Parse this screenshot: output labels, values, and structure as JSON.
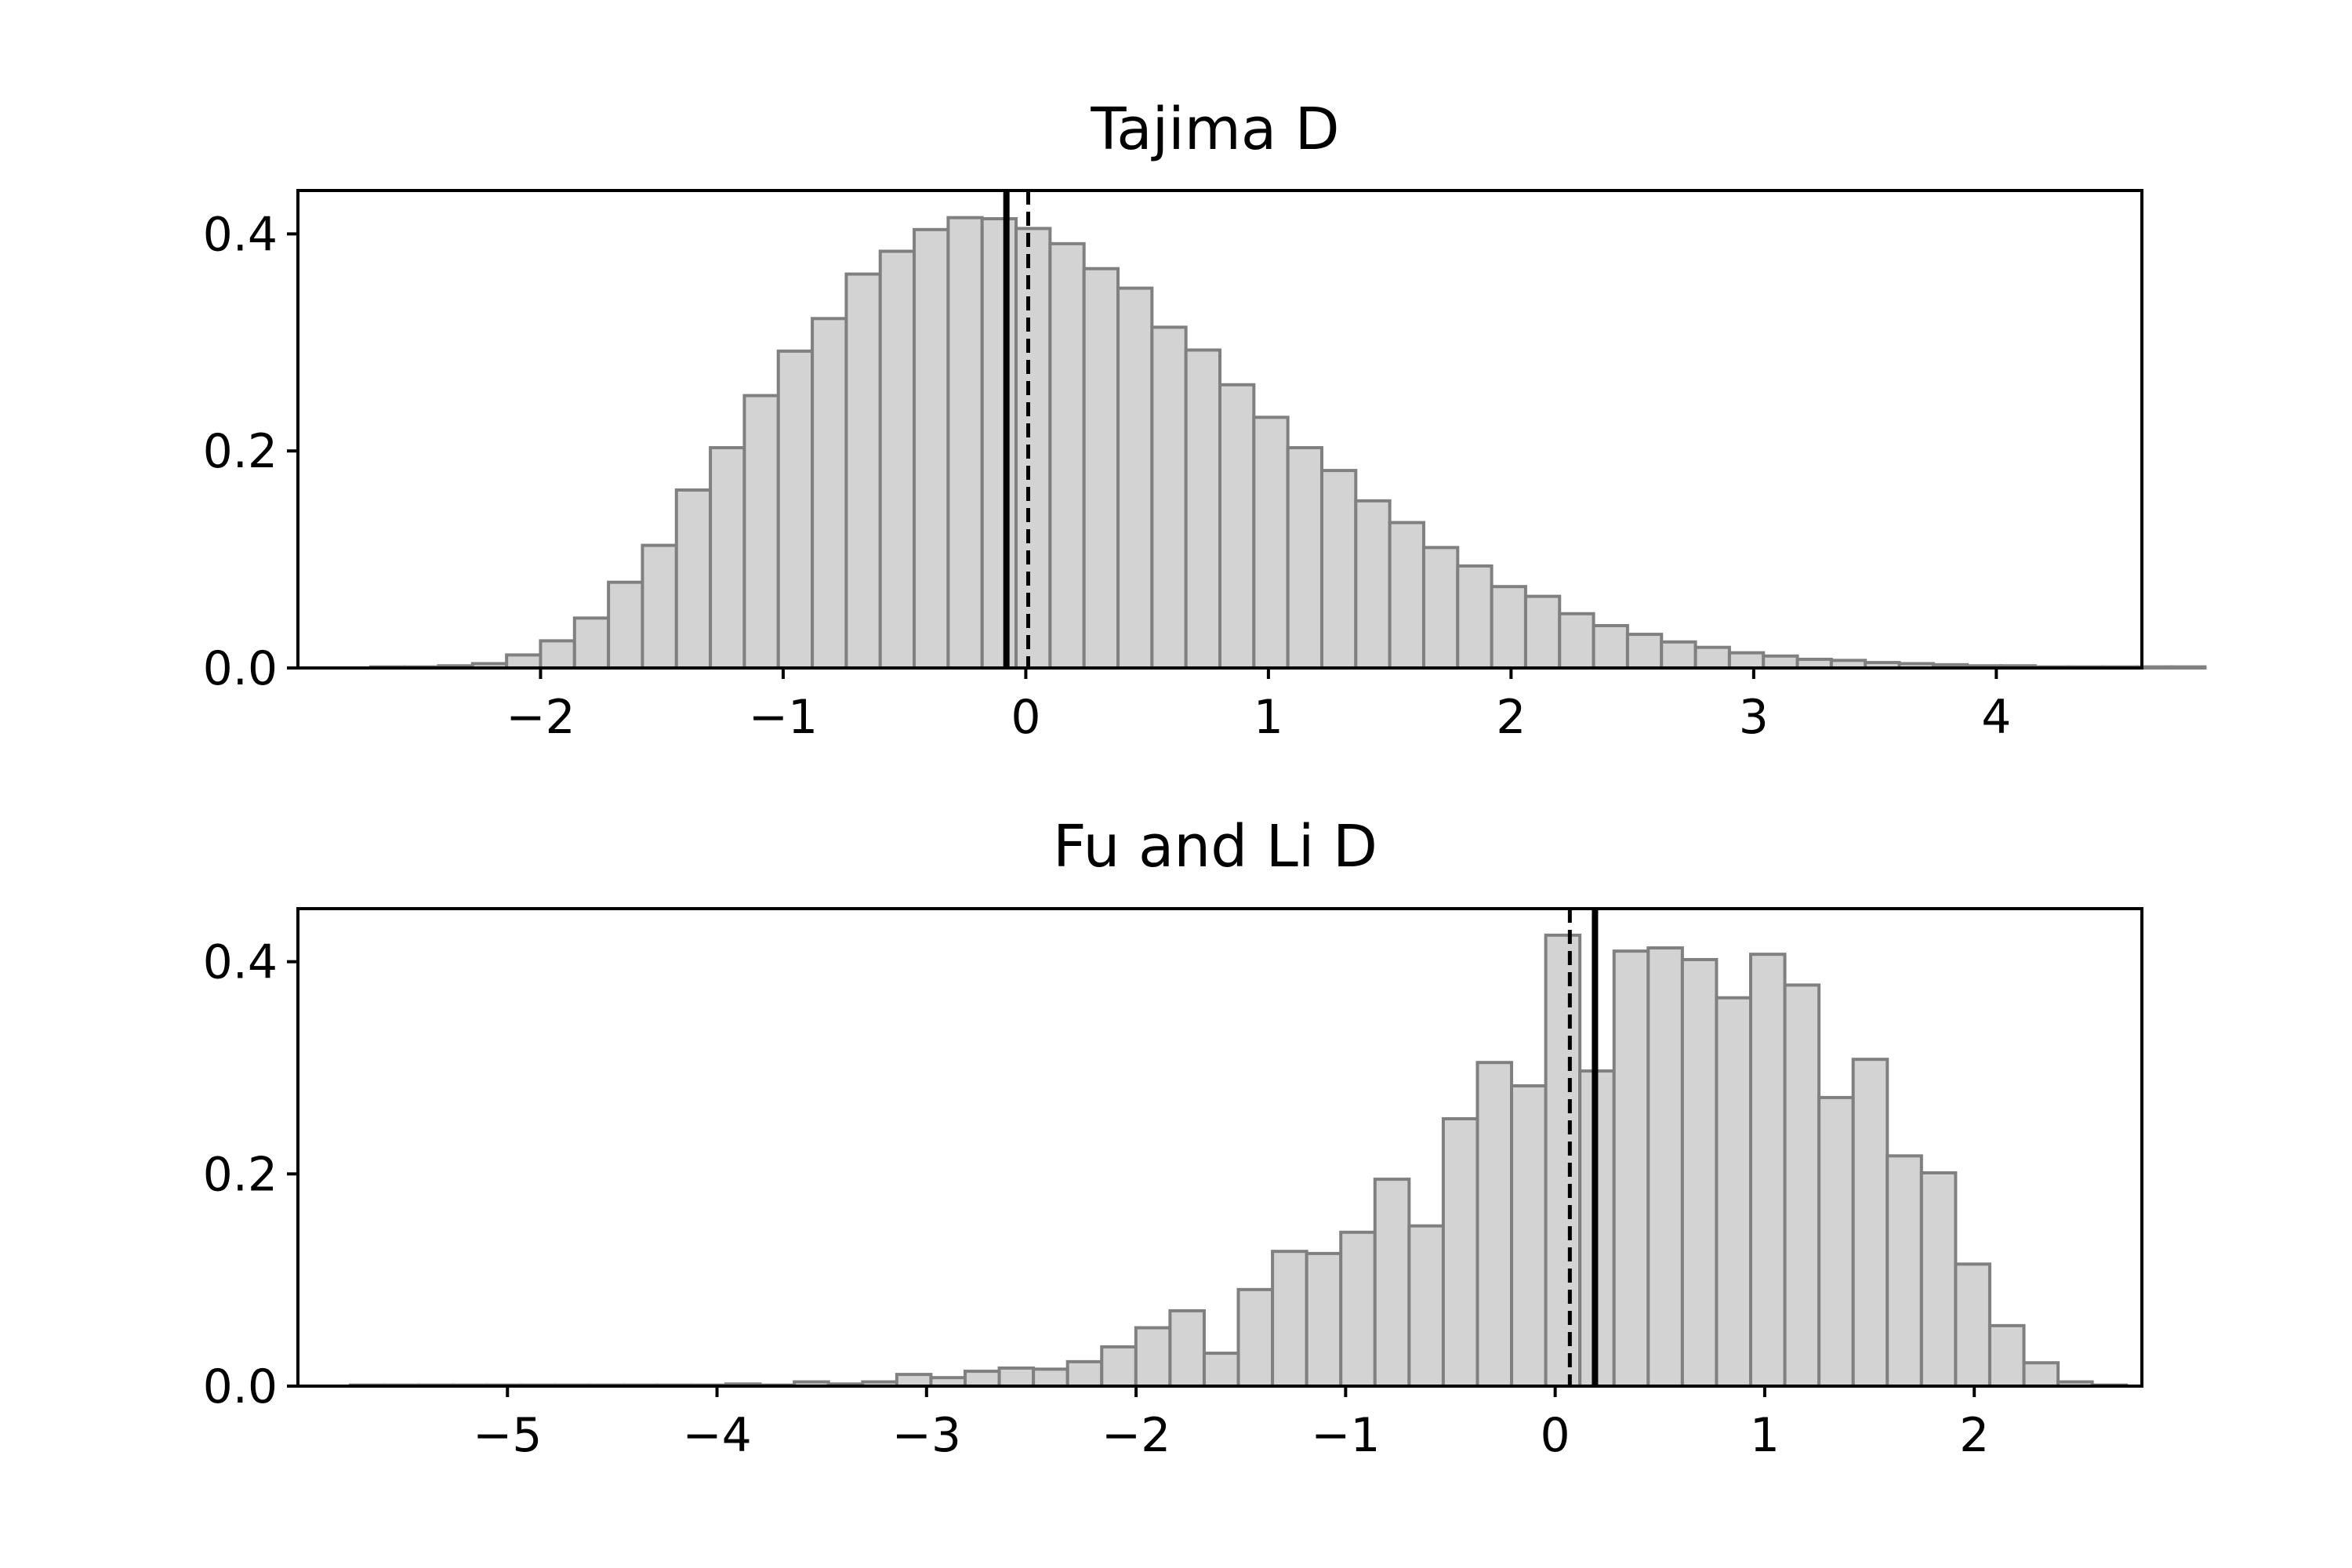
{
  "chart_data": [
    {
      "type": "bar",
      "title": "Tajima D",
      "xlim": [
        -3.0,
        4.6
      ],
      "ylim": [
        0,
        0.44
      ],
      "xticks": [
        -2,
        -1,
        0,
        1,
        2,
        3,
        4
      ],
      "xtick_labels": [
        "−2",
        "−1",
        "0",
        "1",
        "2",
        "3",
        "4"
      ],
      "yticks": [
        0.0,
        0.2,
        0.4
      ],
      "ytick_labels": [
        "0.0",
        "0.2",
        "0.4"
      ],
      "histogram": {
        "bin_start": -2.7,
        "bin_width": 0.14,
        "heights": [
          0.001,
          0.001,
          0.002,
          0.004,
          0.012,
          0.025,
          0.046,
          0.079,
          0.113,
          0.164,
          0.203,
          0.251,
          0.292,
          0.322,
          0.363,
          0.384,
          0.404,
          0.415,
          0.414,
          0.405,
          0.391,
          0.368,
          0.35,
          0.314,
          0.293,
          0.261,
          0.231,
          0.203,
          0.182,
          0.154,
          0.134,
          0.111,
          0.094,
          0.075,
          0.066,
          0.05,
          0.039,
          0.031,
          0.024,
          0.019,
          0.014,
          0.011,
          0.008,
          0.007,
          0.005,
          0.004,
          0.003,
          0.002,
          0.002,
          0.001,
          0.001,
          0.001,
          0.001,
          0.001
        ]
      },
      "vlines": [
        {
          "x": -0.08,
          "style": "solid"
        },
        {
          "x": 0.01,
          "style": "dashed"
        }
      ],
      "grid": false
    },
    {
      "type": "bar",
      "title": "Fu and Li D",
      "xlim": [
        -6.0,
        2.8
      ],
      "ylim": [
        0,
        0.45
      ],
      "xticks": [
        -5,
        -4,
        -3,
        -2,
        -1,
        0,
        1,
        2
      ],
      "xtick_labels": [
        "−5",
        "−4",
        "−3",
        "−2",
        "−1",
        "0",
        "1",
        "2"
      ],
      "yticks": [
        0.0,
        0.2,
        0.4
      ],
      "ytick_labels": [
        "0.0",
        "0.2",
        "0.4"
      ],
      "histogram": {
        "bin_start": -5.75,
        "bin_width": 0.163,
        "heights": [
          0.001,
          0.001,
          0.001,
          0.001,
          0.001,
          0.001,
          0.001,
          0.001,
          0.001,
          0.001,
          0.001,
          0.002,
          0.001,
          0.004,
          0.002,
          0.004,
          0.011,
          0.008,
          0.014,
          0.017,
          0.016,
          0.023,
          0.037,
          0.055,
          0.071,
          0.031,
          0.091,
          0.127,
          0.125,
          0.145,
          0.195,
          0.151,
          0.252,
          0.305,
          0.283,
          0.425,
          0.297,
          0.41,
          0.413,
          0.402,
          0.366,
          0.407,
          0.378,
          0.272,
          0.308,
          0.217,
          0.201,
          0.115,
          0.057,
          0.022,
          0.004,
          0.001
        ]
      },
      "vlines": [
        {
          "x": 0.07,
          "style": "dashed"
        },
        {
          "x": 0.19,
          "style": "solid"
        }
      ],
      "grid": false
    }
  ]
}
